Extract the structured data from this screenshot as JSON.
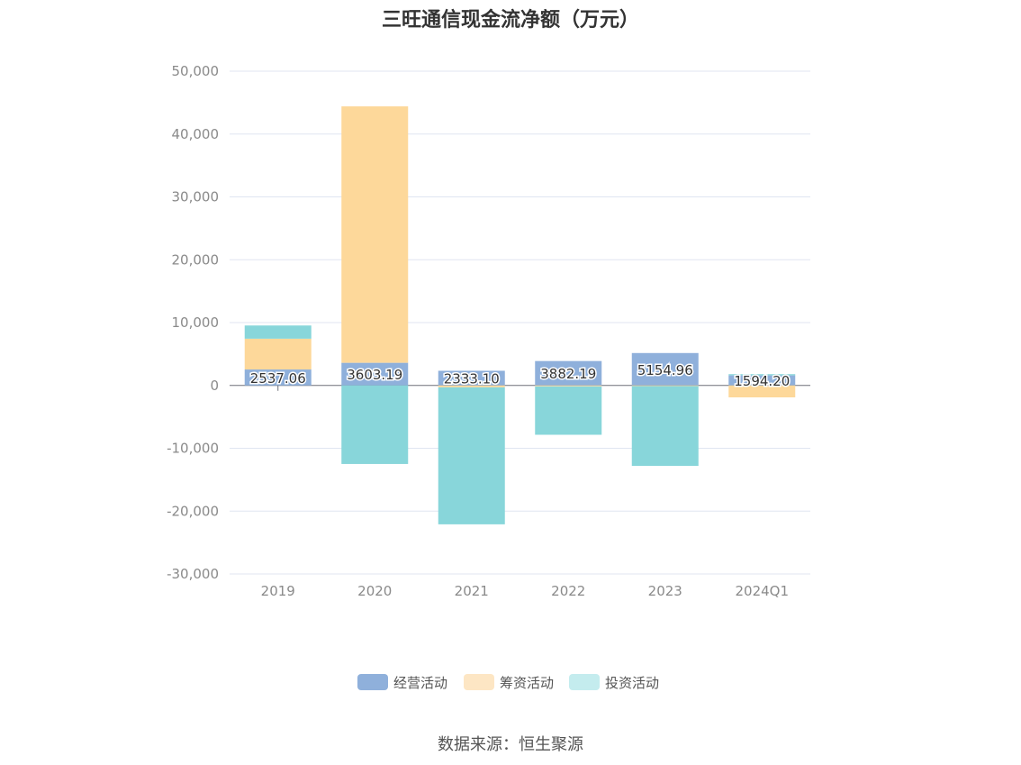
{
  "chart_data": {
    "type": "bar",
    "stacked": true,
    "title": "三旺通信现金流净额（万元）",
    "categories": [
      "2019",
      "2020",
      "2021",
      "2022",
      "2023",
      "2024Q1"
    ],
    "series": [
      {
        "name": "经营活动",
        "color": "#8fb0db",
        "values": [
          2537.06,
          3603.19,
          2333.1,
          3882.19,
          5154.96,
          1594.2
        ]
      },
      {
        "name": "筹资活动",
        "color": "#fdd89a",
        "values": [
          4900,
          40800,
          -300,
          -150,
          -100,
          -1900
        ]
      },
      {
        "name": "投资活动",
        "color": "#88d6da",
        "values": [
          2100,
          -12500,
          -21800,
          -7700,
          -12700,
          200
        ]
      }
    ],
    "data_labels": [
      "2537.06",
      "3603.19",
      "2333.10",
      "3882.19",
      "5154.96",
      "1594.20"
    ],
    "y_ticks": [
      "50,000",
      "40,000",
      "30,000",
      "20,000",
      "10,000",
      "0",
      "-10,000",
      "-20,000",
      "-30,000"
    ],
    "ylim": [
      -30000,
      50000
    ],
    "grid": true,
    "legend_position": "bottom"
  },
  "legend": [
    {
      "label": "经营活动",
      "color": "#8fb0db"
    },
    {
      "label": "筹资活动",
      "color": "#fde6c4"
    },
    {
      "label": "投资活动",
      "color": "#c4ecee"
    }
  ],
  "source": "数据来源：恒生聚源"
}
